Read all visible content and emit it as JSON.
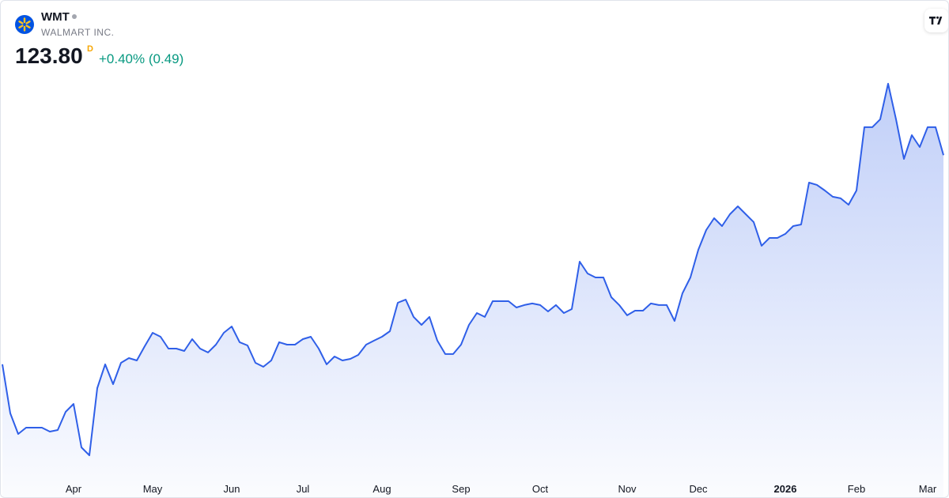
{
  "header": {
    "symbol": "WMT",
    "name": "WALMART INC.",
    "price": "123.80",
    "price_flag": "D",
    "change": "+0.40% (0.49)"
  },
  "chart_data": {
    "type": "area",
    "color": "#2f5fe8",
    "ylim": [
      77.4,
      146.2
    ],
    "categories": [
      null,
      null,
      null,
      null,
      null,
      null,
      null,
      null,
      null,
      "Apr",
      null,
      null,
      null,
      null,
      null,
      null,
      null,
      null,
      null,
      "May",
      null,
      null,
      null,
      null,
      null,
      null,
      null,
      null,
      null,
      "Jun",
      null,
      null,
      null,
      null,
      null,
      null,
      null,
      null,
      "Jul",
      null,
      null,
      null,
      null,
      null,
      null,
      null,
      null,
      null,
      "Aug",
      null,
      null,
      null,
      null,
      null,
      null,
      null,
      null,
      null,
      "Sep",
      null,
      null,
      null,
      null,
      null,
      null,
      null,
      null,
      null,
      "Oct",
      null,
      null,
      null,
      null,
      null,
      null,
      null,
      null,
      null,
      null,
      "Nov",
      null,
      null,
      null,
      null,
      null,
      null,
      null,
      null,
      "Dec",
      null,
      null,
      null,
      null,
      null,
      null,
      null,
      null,
      null,
      null,
      "2026",
      null,
      null,
      null,
      null,
      null,
      null,
      null,
      null,
      "Feb",
      null,
      null,
      null,
      null,
      null,
      null,
      null,
      null,
      "Mar",
      null,
      null
    ],
    "values": [
      93.46,
      86.35,
      83.36,
      84.28,
      84.28,
      84.28,
      83.71,
      83.94,
      86.57,
      87.72,
      81.41,
      80.27,
      90.01,
      93.46,
      90.59,
      93.68,
      94.37,
      94.03,
      96.09,
      98.04,
      97.47,
      95.75,
      95.75,
      95.4,
      97.12,
      95.75,
      95.18,
      96.32,
      98.04,
      98.96,
      96.67,
      96.21,
      93.68,
      93.11,
      94.03,
      96.67,
      96.32,
      96.32,
      97.12,
      97.47,
      95.75,
      93.46,
      94.6,
      94.03,
      94.26,
      94.83,
      96.32,
      96.9,
      97.47,
      98.27,
      102.4,
      102.86,
      100.34,
      99.19,
      100.34,
      96.9,
      94.95,
      94.95,
      96.32,
      99.19,
      100.91,
      100.34,
      102.63,
      102.63,
      102.63,
      101.71,
      102.06,
      102.29,
      102.06,
      101.14,
      102.06,
      100.91,
      101.48,
      108.36,
      106.64,
      106.07,
      106.07,
      103.2,
      102.06,
      100.57,
      101.25,
      101.25,
      102.29,
      102.06,
      102.06,
      99.76,
      103.78,
      106.07,
      110.08,
      112.95,
      114.67,
      113.52,
      115.24,
      116.39,
      115.24,
      114.1,
      110.66,
      111.8,
      111.8,
      112.38,
      113.52,
      113.75,
      119.83,
      119.49,
      118.68,
      117.77,
      117.54,
      116.62,
      118.68,
      127.86,
      127.86,
      129.01,
      134.17,
      129.01,
      123.27,
      126.71,
      124.99,
      127.86,
      127.86,
      123.8
    ]
  }
}
